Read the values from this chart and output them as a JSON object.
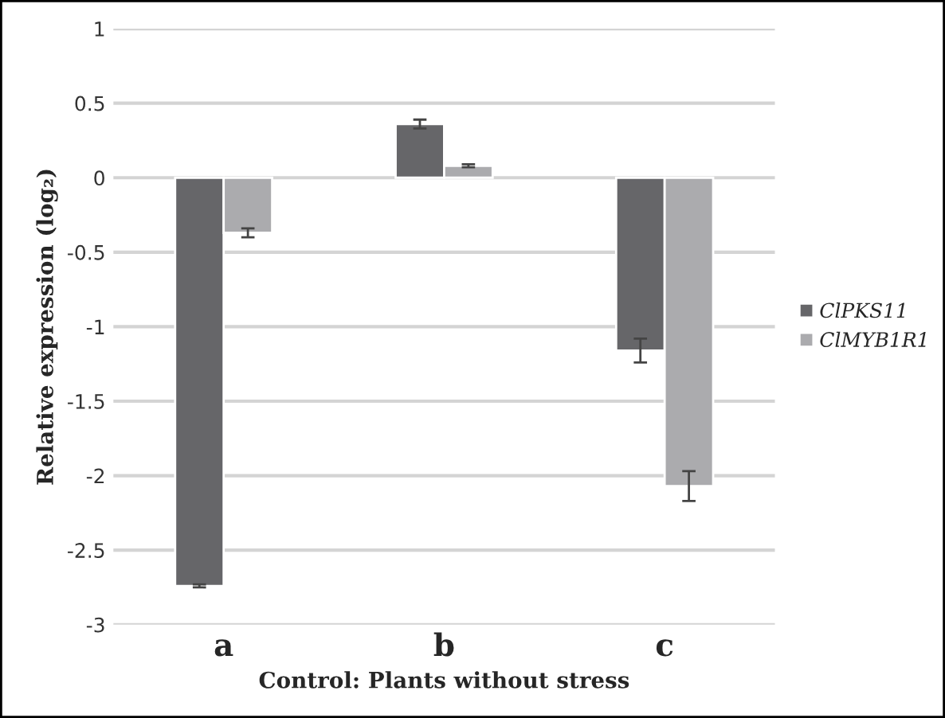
{
  "chart_data": {
    "type": "bar",
    "xlabel": "Control: Plants without stress",
    "ylabel": "Relative expression (log₂)",
    "categories": [
      "a",
      "b",
      "c"
    ],
    "series": [
      {
        "name": "ClPKS11",
        "color": "#666669",
        "values": [
          -2.74,
          0.36,
          -1.16
        ],
        "errors": [
          0.01,
          0.03,
          0.08
        ]
      },
      {
        "name": "ClMYB1R1",
        "color": "#ababae",
        "values": [
          -0.37,
          0.08,
          -2.07
        ],
        "errors": [
          0.03,
          0.01,
          0.1
        ]
      }
    ],
    "ylim": [
      -3,
      1
    ],
    "yticks": [
      -3,
      -2.5,
      -2,
      -1.5,
      -1,
      -0.5,
      0,
      0.5,
      1
    ],
    "grid": "y",
    "legend": "right"
  }
}
